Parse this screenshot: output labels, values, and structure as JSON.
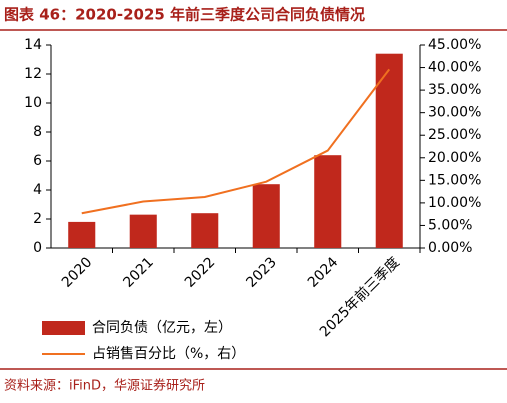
{
  "chart_data": {
    "type": "bar_line",
    "title": "图表 46：2020-2025 年前三季度公司合同负债情况",
    "source": "资料来源：iFinD，华源证券研究所",
    "categories": [
      "2020",
      "2021",
      "2022",
      "2023",
      "2024",
      "2025年前三季度"
    ],
    "series": [
      {
        "name": "合同负债（亿元，左）",
        "color": "#c0281c",
        "type": "bar",
        "values": [
          1.8,
          2.3,
          2.4,
          4.4,
          6.4,
          13.4
        ]
      },
      {
        "name": "占销售百分比（%，右）",
        "color": "#f07020",
        "type": "line",
        "axis": "y2",
        "values": [
          7.7,
          10.3,
          11.3,
          14.7,
          21.6,
          39.6
        ]
      }
    ],
    "ylim": [
      0,
      14
    ],
    "yticks": [
      0,
      2,
      4,
      6,
      8,
      10,
      12,
      14
    ],
    "y2lim": [
      0,
      45
    ],
    "y2ticks": [
      {
        "value": 0,
        "label": "0.00%"
      },
      {
        "value": 5,
        "label": "5.00%"
      },
      {
        "value": 10,
        "label": "10.00%"
      },
      {
        "value": 15,
        "label": "15.00%"
      },
      {
        "value": 20,
        "label": "20.00%"
      },
      {
        "value": 25,
        "label": "25.00%"
      },
      {
        "value": 30,
        "label": "30.00%"
      },
      {
        "value": 35,
        "label": "35.00%"
      },
      {
        "value": 40,
        "label": "40.00%"
      },
      {
        "value": 45,
        "label": "45.00%"
      }
    ],
    "grid": false
  }
}
